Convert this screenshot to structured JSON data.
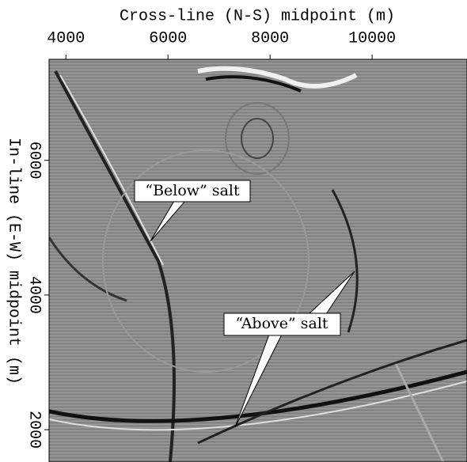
{
  "chart_data": {
    "type": "image",
    "x_label": "Cross-line (N-S) midpoint (m)",
    "y_label": "In-line (E-W) midpoint (m)",
    "xlim": [
      3670,
      11860
    ],
    "xticks": [
      4000,
      6000,
      8000,
      10000
    ],
    "ylim": [
      1520,
      7500
    ],
    "yticks": [
      2000,
      4000,
      6000
    ],
    "annotations": [
      "“Below” salt",
      "“Above” salt"
    ]
  }
}
